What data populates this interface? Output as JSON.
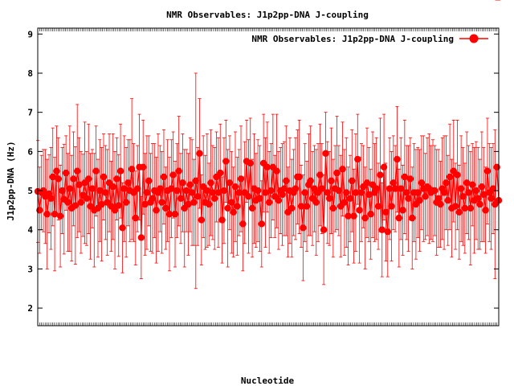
{
  "chart_data": {
    "type": "line",
    "title": "NMR Observables: J1p2pp-DNA J-coupling",
    "xlabel": "Nucleotide",
    "ylabel": "J1p2pp-DNA (Hz)",
    "ylim": [
      1.55,
      9.15
    ],
    "yticks": [
      2,
      3,
      4,
      5,
      6,
      7,
      8,
      9
    ],
    "legend": {
      "position": "top-right",
      "label": "NMR Observables: J1p2pp-DNA J-coupling"
    },
    "grid": false,
    "colors": {
      "series": "#ff0000",
      "axis": "#000000",
      "background": "#ffffff"
    },
    "series": [
      {
        "name": "NMR Observables: J1p2pp-DNA J-coupling",
        "values": [
          4.98,
          4.5,
          4.95,
          5.0,
          4.85,
          4.4,
          4.92,
          4.8,
          5.35,
          4.4,
          5.5,
          5.3,
          4.35,
          5.0,
          4.78,
          5.45,
          4.7,
          5.05,
          4.55,
          5.3,
          4.62,
          5.5,
          5.15,
          4.7,
          4.88,
          5.2,
          4.8,
          5.3,
          4.6,
          5.05,
          4.5,
          5.5,
          4.55,
          5.0,
          4.65,
          5.35,
          4.95,
          4.7,
          5.2,
          4.6,
          5.1,
          4.5,
          5.3,
          4.62,
          5.5,
          4.05,
          5.05,
          4.7,
          5.2,
          5.0,
          5.55,
          4.95,
          4.3,
          5.05,
          5.6,
          3.8,
          5.6,
          4.65,
          4.95,
          5.25,
          4.7,
          4.8,
          5.0,
          4.5,
          4.95,
          5.05,
          4.7,
          5.35,
          4.55,
          5.0,
          4.4,
          5.05,
          5.4,
          4.4,
          5.0,
          5.5,
          4.8,
          5.2,
          4.55,
          5.0,
          4.65,
          5.15,
          4.95,
          4.7,
          5.25,
          4.85,
          5.95,
          4.25,
          5.1,
          4.7,
          5.0,
          4.65,
          5.2,
          4.95,
          4.8,
          5.35,
          4.95,
          5.45,
          4.25,
          5.0,
          5.75,
          4.55,
          5.2,
          4.7,
          4.45,
          5.1,
          4.6,
          4.95,
          5.3,
          4.15,
          4.95,
          5.75,
          4.85,
          5.7,
          4.55,
          5.05,
          4.75,
          5.0,
          4.8,
          4.15,
          5.7,
          4.95,
          5.6,
          4.7,
          5.0,
          5.6,
          4.85,
          5.5,
          4.75,
          5.0,
          4.9,
          5.05,
          5.25,
          4.45,
          5.0,
          4.55,
          4.95,
          5.05,
          5.35,
          5.35,
          4.6,
          4.05,
          4.95,
          4.6,
          5.15,
          5.25,
          4.8,
          5.05,
          4.7,
          4.95,
          5.4,
          5.05,
          4.0,
          5.95,
          4.95,
          4.8,
          5.25,
          4.55,
          5.05,
          5.45,
          5.0,
          4.6,
          5.55,
          4.7,
          4.95,
          4.35,
          4.8,
          5.25,
          4.35,
          4.95,
          5.8,
          4.5,
          4.95,
          5.1,
          4.3,
          5.2,
          4.9,
          4.4,
          5.15,
          4.95,
          5.05,
          4.6,
          5.4,
          4.0,
          5.6,
          4.45,
          3.95,
          5.05,
          4.6,
          5.2,
          5.05,
          5.8,
          4.3,
          5.05,
          4.5,
          5.35,
          4.95,
          4.8,
          5.3,
          4.3,
          4.95,
          4.65,
          4.95,
          4.75,
          5.2,
          5.05,
          4.85,
          5.1,
          5.05,
          4.95,
          5.0,
          5.0,
          4.7,
          4.8,
          4.65,
          5.05,
          4.95,
          5.2,
          4.75,
          5.35,
          4.55,
          5.5,
          4.6,
          5.4,
          4.45,
          5.05,
          4.85,
          4.55,
          5.2,
          4.95,
          4.55,
          5.15,
          4.75,
          5.0,
          4.8,
          4.65,
          5.1,
          4.9,
          4.5,
          5.5,
          4.95,
          4.8,
          5.05,
          4.65,
          5.6,
          4.75
        ]
      }
    ],
    "errors": [
      1.3,
      1.1,
      0.95,
      1.05,
      1.2,
      1.4,
      1.0,
      1.3,
      1.25,
      1.45,
      1.15,
      1.05,
      1.3,
      1.1,
      1.4,
      0.95,
      1.25,
      1.6,
      1.35,
      1.2,
      1.5,
      1.7,
      1.2,
      1.3,
      1.05,
      1.55,
      1.2,
      1.4,
      1.35,
      1.0,
      1.45,
      1.15,
      1.25,
      1.3,
      1.45,
      1.1,
      1.2,
      1.35,
      1.25,
      1.15,
      1.35,
      1.5,
      1.05,
      1.3,
      1.2,
      1.15,
      1.35,
      1.4,
      1.1,
      1.3,
      1.8,
      1.25,
      1.2,
      1.1,
      1.35,
      1.05,
      1.2,
      1.3,
      1.45,
      1.15,
      1.25,
      1.4,
      1.2,
      1.35,
      1.5,
      1.1,
      1.3,
      1.2,
      1.05,
      1.3,
      1.45,
      1.25,
      1.1,
      1.35,
      1.2,
      1.4,
      1.15,
      1.25,
      1.5,
      1.05,
      1.3,
      1.2,
      1.35,
      1.1,
      2.75,
      1.25,
      1.4,
      1.15,
      1.3,
      1.2,
      1.45,
      1.05,
      1.35,
      1.2,
      1.3,
      1.15,
      1.4,
      1.25,
      1.1,
      1.35,
      1.05,
      1.5,
      1.2,
      1.3,
      1.15,
      1.4,
      1.25,
      1.1,
      1.35,
      1.2,
      1.3,
      1.05,
      1.45,
      1.15,
      1.25,
      1.4,
      1.2,
      1.3,
      1.35,
      1.1,
      1.25,
      1.4,
      1.15,
      1.3,
      1.2,
      1.35,
      1.05,
      1.45,
      1.25,
      1.1,
      1.3,
      1.2,
      1.4,
      1.15,
      1.35,
      1.25,
      1.1,
      1.3,
      1.2,
      1.45,
      1.05,
      1.35,
      1.25,
      1.15,
      1.3,
      1.4,
      1.2,
      1.1,
      1.35,
      1.25,
      1.3,
      1.15,
      1.4,
      1.05,
      1.3,
      1.2,
      1.35,
      1.25,
      1.1,
      1.45,
      1.15,
      1.3,
      1.2,
      1.35,
      1.4,
      1.25,
      1.1,
      1.3,
      1.2,
      1.5,
      1.15,
      1.35,
      1.25,
      1.05,
      1.3,
      1.4,
      1.2,
      1.15,
      1.35,
      1.25,
      1.3,
      1.1,
      1.45,
      1.2,
      1.35,
      1.25,
      1.15,
      1.3,
      1.4,
      1.2,
      1.1,
      1.35,
      1.25,
      1.3,
      1.15,
      1.45,
      1.2,
      1.35,
      1.05,
      1.3,
      1.25,
      1.4,
      1.15,
      1.3,
      1.2,
      1.35,
      1.1,
      1.25,
      1.4,
      1.2,
      1.3,
      1.15,
      1.35,
      1.25,
      1.1,
      1.3,
      1.45,
      1.2,
      1.15,
      1.35,
      1.25,
      1.3,
      1.1,
      1.4,
      1.2,
      1.35,
      1.25,
      1.15,
      1.3,
      1.2,
      1.45,
      1.05,
      1.35,
      1.25,
      1.3,
      1.15,
      1.4,
      1.2,
      1.1,
      1.35,
      1.25,
      1.3,
      1.15,
      1.9
    ],
    "x_tick_labels": [],
    "x_tick_count": 250
  }
}
